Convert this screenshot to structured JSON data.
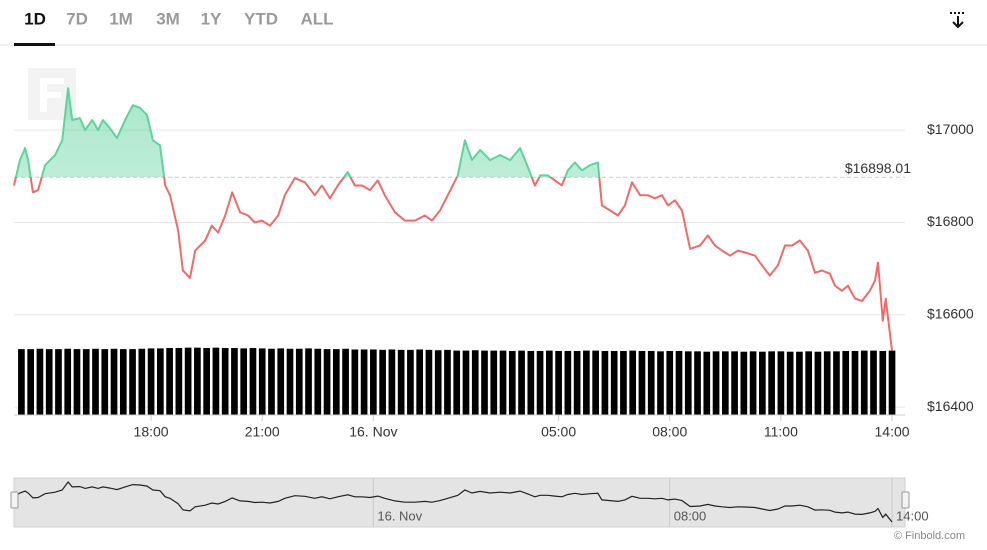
{
  "range_buttons": [
    "1D",
    "7D",
    "1M",
    "3M",
    "1Y",
    "YTD",
    "ALL"
  ],
  "credit": "© Finbold.com",
  "chart_data": {
    "type": "line",
    "x": [
      -9.7,
      -9.54,
      -9.4,
      -9.32,
      -9.19,
      -9.05,
      -8.86,
      -8.59,
      -8.4,
      -8.24,
      -8.13,
      -7.92,
      -7.78,
      -7.59,
      -7.43,
      -7.3,
      -7.11,
      -6.92,
      -6.7,
      -6.49,
      -6.3,
      -6.11,
      -5.95,
      -5.76,
      -5.62,
      -5.49,
      -5.27,
      -5.14,
      -4.95,
      -4.81,
      -4.54,
      -4.36,
      -4.19,
      -4.0,
      -3.81,
      -3.6,
      -3.38,
      -3.2,
      -3.01,
      -2.79,
      -2.57,
      -2.39,
      -2.12,
      -1.85,
      -1.58,
      -1.39,
      -1.17,
      -0.96,
      -0.69,
      -0.5,
      -0.31,
      -0.09,
      0.12,
      0.31,
      0.58,
      0.85,
      1.12,
      1.39,
      1.58,
      1.8,
      2.01,
      2.28,
      2.47,
      2.66,
      2.88,
      3.15,
      3.42,
      3.69,
      3.96,
      4.15,
      4.36,
      4.5,
      4.71,
      4.9,
      5.09,
      5.25,
      5.44,
      5.63,
      5.85,
      6.06,
      6.17,
      6.39,
      6.6,
      6.79,
      6.98,
      7.2,
      7.41,
      7.6,
      7.79,
      7.95,
      8.14,
      8.33,
      8.55,
      8.82,
      9.03,
      9.22,
      9.41,
      9.63,
      9.84,
      10.03,
      10.3,
      10.49,
      10.7,
      10.92,
      11.11,
      11.3,
      11.51,
      11.73,
      11.92,
      12.11,
      12.32,
      12.46,
      12.65,
      12.81,
      13.0,
      13.19,
      13.4,
      13.54,
      13.62,
      13.75,
      13.83,
      14.0
    ],
    "series": [
      {
        "values": [
          16880,
          16935,
          16961,
          16935,
          16865,
          16870,
          16924,
          16946,
          16978,
          17091,
          17022,
          17026,
          17000,
          17022,
          17000,
          17022,
          17004,
          16983,
          17022,
          17054,
          17048,
          17033,
          16978,
          16967,
          16880,
          16859,
          16783,
          16696,
          16680,
          16739,
          16761,
          16793,
          16778,
          16815,
          16865,
          16822,
          16815,
          16800,
          16804,
          16793,
          16815,
          16859,
          16896,
          16887,
          16859,
          16880,
          16852,
          16880,
          16909,
          16880,
          16880,
          16870,
          16891,
          16859,
          16822,
          16804,
          16804,
          16815,
          16804,
          16826,
          16859,
          16902,
          16978,
          16935,
          16957,
          16935,
          16946,
          16935,
          16961,
          16924,
          16880,
          16902,
          16902,
          16891,
          16880,
          16913,
          16930,
          16913,
          16924,
          16930,
          16837,
          16826,
          16815,
          16837,
          16887,
          16859,
          16859,
          16852,
          16859,
          16837,
          16848,
          16826,
          16743,
          16750,
          16772,
          16750,
          16739,
          16728,
          16739,
          16735,
          16728,
          16707,
          16685,
          16707,
          16750,
          16750,
          16761,
          16739,
          16691,
          16696,
          16689,
          16663,
          16652,
          16663,
          16635,
          16630,
          16652,
          16674,
          16713,
          16587,
          16635,
          16522
        ]
      }
    ],
    "color_up": "#5fd39c",
    "color_down": "#ee6b6b",
    "baseline": {
      "value": 16898.01,
      "label": "$16898.01"
    },
    "xlim": [
      -9.7,
      14.35
    ],
    "xticks": [
      {
        "value": -6,
        "label": "18:00"
      },
      {
        "value": -3,
        "label": "21:00"
      },
      {
        "value": 0,
        "label": "16. Nov"
      },
      {
        "value": 5,
        "label": "05:00"
      },
      {
        "value": 8,
        "label": "08:00"
      },
      {
        "value": 11,
        "label": "11:00"
      },
      {
        "value": 14,
        "label": "14:00"
      }
    ],
    "ylim": [
      16383,
      17180
    ],
    "yticks": [
      {
        "value": 16400,
        "label": "$16400"
      },
      {
        "value": 16600,
        "label": "$16600"
      },
      {
        "value": 16800,
        "label": "$16800"
      },
      {
        "value": 17000,
        "label": "$17000"
      }
    ],
    "grid": true,
    "volume": {
      "color": "#000000",
      "ylim": [
        0,
        100
      ],
      "x": [
        -9.5,
        -9.25,
        -9,
        -8.75,
        -8.5,
        -8.25,
        -8,
        -7.75,
        -7.5,
        -7.25,
        -7,
        -6.75,
        -6.5,
        -6.25,
        -6,
        -5.75,
        -5.5,
        -5.25,
        -5,
        -4.75,
        -4.5,
        -4.25,
        -4,
        -3.75,
        -3.5,
        -3.25,
        -3,
        -2.75,
        -2.5,
        -2.25,
        -2,
        -1.75,
        -1.5,
        -1.25,
        -1,
        -0.75,
        -0.5,
        -0.25,
        0,
        0.25,
        0.5,
        0.75,
        1,
        1.25,
        1.5,
        1.75,
        2,
        2.25,
        2.5,
        2.75,
        3,
        3.25,
        3.5,
        3.75,
        4,
        4.25,
        4.5,
        4.75,
        5,
        5.25,
        5.5,
        5.75,
        6,
        6.25,
        6.5,
        6.75,
        7,
        7.25,
        7.5,
        7.75,
        8,
        8.25,
        8.5,
        8.75,
        9,
        9.25,
        9.5,
        9.75,
        10,
        10.25,
        10.5,
        10.75,
        11,
        11.25,
        11.5,
        11.75,
        12,
        12.25,
        12.5,
        12.75,
        13,
        13.25,
        13.5,
        13.75,
        14
      ],
      "values": [
        17.9,
        17.9,
        18.0,
        17.9,
        17.9,
        18.0,
        17.9,
        17.9,
        18.0,
        17.9,
        18.0,
        17.9,
        17.9,
        18.0,
        18.1,
        18.1,
        18.2,
        18.2,
        18.3,
        18.3,
        18.2,
        18.3,
        18.2,
        18.2,
        18.1,
        18.2,
        18.1,
        18.0,
        18.1,
        18.0,
        18.0,
        18.1,
        18.0,
        17.9,
        17.9,
        18.0,
        17.8,
        17.8,
        17.8,
        17.7,
        17.8,
        17.7,
        17.7,
        17.8,
        17.7,
        17.6,
        17.7,
        17.5,
        17.5,
        17.6,
        17.5,
        17.5,
        17.5,
        17.4,
        17.5,
        17.4,
        17.4,
        17.5,
        17.4,
        17.4,
        17.4,
        17.5,
        17.5,
        17.4,
        17.4,
        17.4,
        17.5,
        17.4,
        17.4,
        17.3,
        17.4,
        17.4,
        17.3,
        17.3,
        17.2,
        17.3,
        17.3,
        17.3,
        17.2,
        17.3,
        17.2,
        17.3,
        17.3,
        17.2,
        17.2,
        17.3,
        17.2,
        17.3,
        17.3,
        17.4,
        17.4,
        17.5,
        17.5,
        17.4,
        17.5
      ]
    },
    "navigator": {
      "ylim": [
        16451,
        17148
      ],
      "xticks": [
        {
          "value": 0,
          "label": "16. Nov"
        },
        {
          "value": 8,
          "label": "08:00"
        },
        {
          "value": 14,
          "label": "14:00"
        }
      ]
    }
  }
}
